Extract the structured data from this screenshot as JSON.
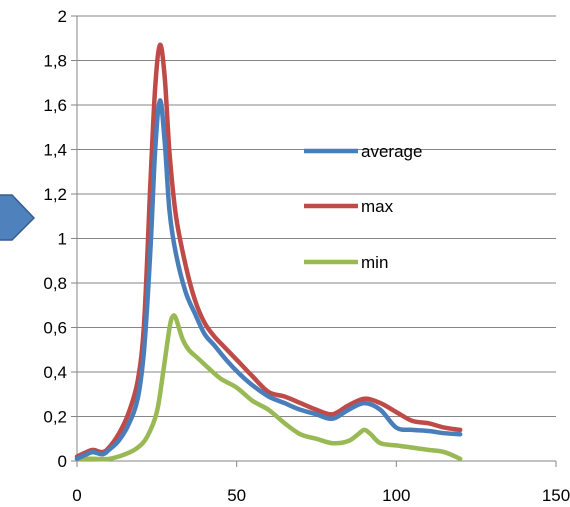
{
  "chart_data": {
    "type": "line",
    "title": "",
    "xlabel": "",
    "ylabel": "",
    "xlim": [
      0,
      150
    ],
    "ylim": [
      0,
      2
    ],
    "x_ticks": [
      "0",
      "50",
      "100",
      "150"
    ],
    "x_tick_values": [
      0,
      50,
      100,
      150
    ],
    "y_ticks": [
      "0",
      "0,2",
      "0,4",
      "0,6",
      "0,8",
      "1",
      "1,2",
      "1,4",
      "1,6",
      "1,8",
      "2"
    ],
    "y_tick_values": [
      0,
      0.2,
      0.4,
      0.6,
      0.8,
      1.0,
      1.2,
      1.4,
      1.6,
      1.8,
      2.0
    ],
    "grid": "horizontal",
    "legend_position": "right",
    "series": [
      {
        "name": "average",
        "color": "#4a7ebb",
        "x": [
          0,
          3,
          5,
          8,
          10,
          13,
          16,
          19,
          21,
          23,
          24.5,
          26,
          27.5,
          29,
          31,
          34,
          37,
          40,
          43,
          47,
          51,
          55,
          60,
          65,
          70,
          75,
          80,
          85,
          90,
          95,
          100,
          105,
          110,
          115,
          120
        ],
        "y": [
          0.01,
          0.03,
          0.04,
          0.03,
          0.05,
          0.09,
          0.16,
          0.28,
          0.5,
          0.95,
          1.4,
          1.62,
          1.43,
          1.12,
          0.93,
          0.76,
          0.66,
          0.57,
          0.52,
          0.45,
          0.39,
          0.34,
          0.29,
          0.26,
          0.23,
          0.21,
          0.19,
          0.23,
          0.26,
          0.23,
          0.15,
          0.14,
          0.135,
          0.125,
          0.12
        ]
      },
      {
        "name": "max",
        "color": "#be4b48",
        "x": [
          0,
          3,
          5,
          8,
          10,
          13,
          16,
          19,
          21,
          23,
          24.5,
          26,
          27.5,
          29,
          31,
          34,
          37,
          40,
          43,
          47,
          51,
          55,
          60,
          65,
          70,
          75,
          80,
          85,
          90,
          95,
          100,
          105,
          110,
          115,
          120
        ],
        "y": [
          0.02,
          0.04,
          0.05,
          0.04,
          0.06,
          0.12,
          0.21,
          0.36,
          0.62,
          1.25,
          1.68,
          1.87,
          1.72,
          1.38,
          1.1,
          0.88,
          0.72,
          0.62,
          0.56,
          0.5,
          0.44,
          0.38,
          0.31,
          0.29,
          0.26,
          0.23,
          0.21,
          0.25,
          0.28,
          0.26,
          0.22,
          0.18,
          0.17,
          0.15,
          0.14
        ]
      },
      {
        "name": "min",
        "color": "#98b954",
        "x": [
          0,
          5,
          10,
          15,
          19,
          22,
          25,
          27,
          29,
          30,
          31,
          33,
          35,
          38,
          41,
          45,
          50,
          55,
          60,
          65,
          70,
          75,
          80,
          85,
          88,
          90,
          92,
          95,
          100,
          105,
          110,
          115,
          120
        ],
        "y": [
          0.01,
          0.01,
          0.01,
          0.03,
          0.06,
          0.11,
          0.22,
          0.4,
          0.6,
          0.65,
          0.64,
          0.55,
          0.5,
          0.46,
          0.42,
          0.37,
          0.33,
          0.27,
          0.23,
          0.17,
          0.12,
          0.1,
          0.08,
          0.09,
          0.12,
          0.14,
          0.12,
          0.08,
          0.07,
          0.06,
          0.05,
          0.04,
          0.01
        ]
      }
    ]
  }
}
